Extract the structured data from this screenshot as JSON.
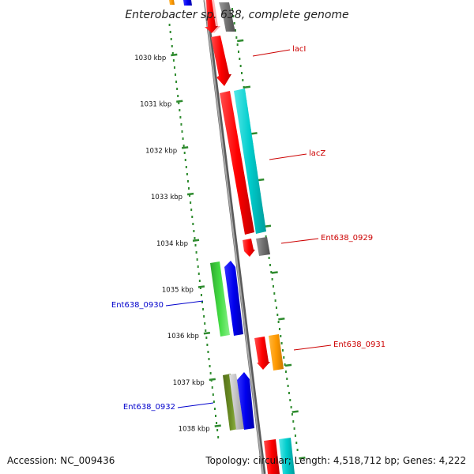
{
  "title": "Enterobacter sp. 638, complete genome",
  "accession_text": "Accession: NC_009436",
  "summary_text": "Topology: circular; Length: 4,518,712 bp; Genes: 4,222",
  "ticks": [
    {
      "label": "1030 kbp"
    },
    {
      "label": "1031 kbp"
    },
    {
      "label": "1032 kbp"
    },
    {
      "label": "1033 kbp"
    },
    {
      "label": "1034 kbp"
    },
    {
      "label": "1035 kbp"
    },
    {
      "label": "1036 kbp"
    },
    {
      "label": "1037 kbp"
    },
    {
      "label": "1038 kbp"
    }
  ],
  "gene_labels": [
    {
      "id": "lacI",
      "text": "lacI",
      "strand": "forward"
    },
    {
      "id": "lacZ",
      "text": "lacZ",
      "strand": "forward"
    },
    {
      "id": "ent0929",
      "text": "Ent638_0929",
      "strand": "forward"
    },
    {
      "id": "ent0930",
      "text": "Ent638_0930",
      "strand": "reverse"
    },
    {
      "id": "ent0931",
      "text": "Ent638_0931",
      "strand": "forward"
    },
    {
      "id": "ent0932",
      "text": "Ent638_0932",
      "strand": "reverse"
    }
  ],
  "colors": {
    "backbone": "#8a8a8a",
    "dots": "#2e8b2e",
    "red": "#ff0000",
    "cyan": "#00cccc",
    "green": "#33cc33",
    "blue": "#0000ee",
    "orange": "#ff9900",
    "gray": "#707070",
    "olive": "#6b8e23",
    "pink": "#ffc0c0",
    "lightgray": "#bbbbbb",
    "label_red": "#cc0000",
    "label_blue": "#0000cc"
  }
}
